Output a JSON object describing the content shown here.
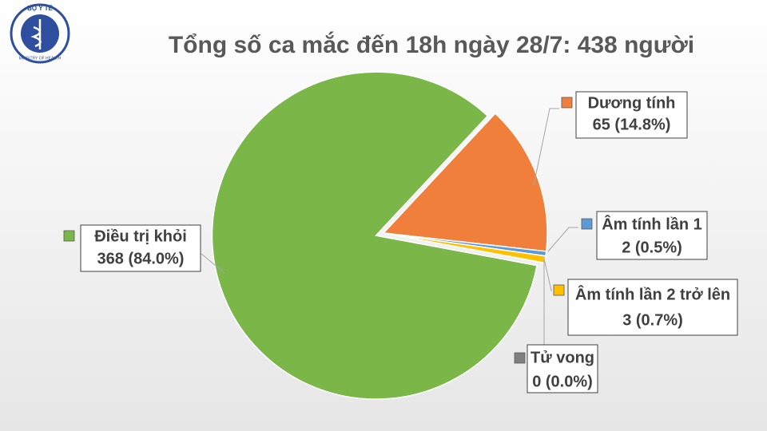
{
  "logo": {
    "top": "BỘ Y TẾ",
    "bottom": "MINISTRY OF HEALTH"
  },
  "chart_data": {
    "type": "pie",
    "title": "Tổng số ca mắc đến 18h ngày 28/7: 438 người",
    "categories": [
      "Dương tính",
      "Âm tính lần 1",
      "Âm tính lần 2 trở lên",
      "Tử vong",
      "Điều trị khỏi"
    ],
    "values": [
      65,
      2,
      3,
      0,
      368
    ],
    "value_labels": [
      "65 (14.8%)",
      "2 (0.5%)",
      "3 (0.7%)",
      "0 (0.0%)",
      "368 (84.0%)"
    ],
    "colors": [
      "#f07f3c",
      "#5b9bd5",
      "#ffc000",
      "#7f7f7f",
      "#7ab648"
    ]
  }
}
